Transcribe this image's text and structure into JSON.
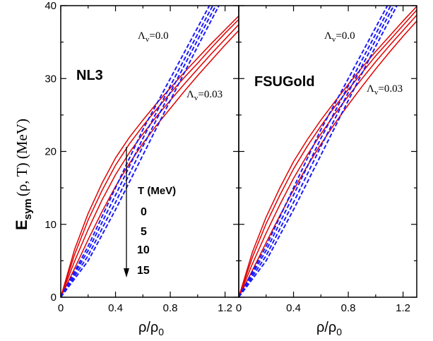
{
  "chart_data": {
    "type": "line",
    "ylabel_main": "E",
    "ylabel_sub": "sym",
    "ylabel_rest": "(ρ, T)  (MeV)",
    "xlabel_main": "ρ/ρ",
    "xlabel_sub": "0",
    "xlim": [
      0,
      1.3
    ],
    "ylim": [
      0,
      40
    ],
    "xticks": [
      0,
      0.4,
      0.8,
      1.2
    ],
    "xtick_labels": [
      "0",
      "0.4",
      "0.8",
      "1.2"
    ],
    "yticks": [
      0,
      10,
      20,
      30,
      40
    ],
    "ytick_labels": [
      "0",
      "10",
      "20",
      "30",
      "40"
    ],
    "grid": false,
    "colors": {
      "red": "#e00000",
      "blue": "#1a1aff"
    },
    "temperature_header": "T (MeV)",
    "temperatures": [
      "0",
      "5",
      "10",
      "15"
    ],
    "panels": [
      {
        "label": "NL3",
        "lambda_high": {
          "letter": "Λ",
          "sub": "v",
          "value": "=0.0"
        },
        "lambda_low": {
          "letter": "Λ",
          "sub": "v",
          "value": "=0.03"
        },
        "series": [
          {
            "style": "red-solid",
            "x": [
              0,
              0.1,
              0.2,
              0.3,
              0.4,
              0.5,
              0.6,
              0.7,
              0.8,
              0.9,
              1.0,
              1.1,
              1.2,
              1.3
            ],
            "y": [
              0,
              6.5,
              11.5,
              15.6,
              19.1,
              21.9,
              24.3,
              26.6,
              28.7,
              30.8,
              32.8,
              34.8,
              36.7,
              38.6
            ]
          },
          {
            "style": "red-solid",
            "x": [
              0,
              0.1,
              0.2,
              0.3,
              0.4,
              0.5,
              0.6,
              0.7,
              0.8,
              0.9,
              1.0,
              1.1,
              1.2,
              1.3
            ],
            "y": [
              0,
              5.8,
              10.6,
              14.6,
              18.1,
              21.0,
              23.5,
              25.8,
              28.0,
              30.1,
              32.1,
              34.2,
              36.2,
              38.1
            ]
          },
          {
            "style": "red-solid",
            "x": [
              0,
              0.1,
              0.2,
              0.3,
              0.4,
              0.5,
              0.6,
              0.7,
              0.8,
              0.9,
              1.0,
              1.1,
              1.2,
              1.3
            ],
            "y": [
              0,
              4.9,
              9.3,
              13.3,
              16.8,
              19.8,
              22.4,
              24.8,
              27.0,
              29.2,
              31.3,
              33.4,
              35.4,
              37.4
            ]
          },
          {
            "style": "red-solid",
            "x": [
              0,
              0.1,
              0.2,
              0.3,
              0.4,
              0.5,
              0.6,
              0.7,
              0.8,
              0.9,
              1.0,
              1.1,
              1.2,
              1.3
            ],
            "y": [
              0,
              3.9,
              7.9,
              11.7,
              15.2,
              18.3,
              21.1,
              23.6,
              25.9,
              28.2,
              30.4,
              32.5,
              34.6,
              36.6
            ]
          },
          {
            "style": "blue-dashed",
            "x": [
              0,
              0.2,
              0.4,
              0.6,
              0.8,
              1.0,
              1.2
            ],
            "y": [
              0,
              7.0,
              15.0,
              23.0,
              30.0,
              37.0,
              44.0
            ]
          },
          {
            "style": "blue-dashed",
            "x": [
              0,
              0.2,
              0.4,
              0.6,
              0.8,
              1.0,
              1.2
            ],
            "y": [
              0,
              6.4,
              14.0,
              21.8,
              29.0,
              36.1,
              43.2
            ]
          },
          {
            "style": "blue-dashed",
            "x": [
              0,
              0.2,
              0.4,
              0.6,
              0.8,
              1.0,
              1.2
            ],
            "y": [
              0,
              5.7,
              13.0,
              20.7,
              28.1,
              35.3,
              42.4
            ]
          },
          {
            "style": "blue-dashed",
            "x": [
              0,
              0.2,
              0.4,
              0.6,
              0.8,
              1.0,
              1.2
            ],
            "y": [
              0,
              5.0,
              12.0,
              19.5,
              27.0,
              34.4,
              41.6
            ]
          }
        ]
      },
      {
        "label": "FSUGold",
        "lambda_high": {
          "letter": "Λ",
          "sub": "v",
          "value": "=0.0"
        },
        "lambda_low": {
          "letter": "Λ",
          "sub": "v",
          "value": "=0.03"
        },
        "series": [
          {
            "style": "red-solid",
            "x": [
              0,
              0.1,
              0.2,
              0.3,
              0.4,
              0.5,
              0.6,
              0.7,
              0.8,
              0.9,
              1.0,
              1.1,
              1.2,
              1.3
            ],
            "y": [
              0,
              6.2,
              11.0,
              15.0,
              18.6,
              21.6,
              24.3,
              26.8,
              29.2,
              31.5,
              33.7,
              35.8,
              37.9,
              39.9
            ]
          },
          {
            "style": "red-solid",
            "x": [
              0,
              0.1,
              0.2,
              0.3,
              0.4,
              0.5,
              0.6,
              0.7,
              0.8,
              0.9,
              1.0,
              1.1,
              1.2,
              1.3
            ],
            "y": [
              0,
              5.5,
              10.1,
              14.0,
              17.6,
              20.7,
              23.5,
              26.1,
              28.5,
              30.8,
              33.1,
              35.2,
              37.3,
              39.4
            ]
          },
          {
            "style": "red-solid",
            "x": [
              0,
              0.1,
              0.2,
              0.3,
              0.4,
              0.5,
              0.6,
              0.7,
              0.8,
              0.9,
              1.0,
              1.1,
              1.2,
              1.3
            ],
            "y": [
              0,
              4.6,
              8.8,
              12.7,
              16.3,
              19.5,
              22.4,
              25.1,
              27.6,
              30.0,
              32.3,
              34.5,
              36.6,
              38.7
            ]
          },
          {
            "style": "red-solid",
            "x": [
              0,
              0.1,
              0.2,
              0.3,
              0.4,
              0.5,
              0.6,
              0.7,
              0.8,
              0.9,
              1.0,
              1.1,
              1.2,
              1.3
            ],
            "y": [
              0,
              3.7,
              7.5,
              11.2,
              14.7,
              18.0,
              21.0,
              23.8,
              26.4,
              28.9,
              31.3,
              33.6,
              35.8,
              37.9
            ]
          },
          {
            "style": "blue-dashed",
            "x": [
              0,
              0.2,
              0.4,
              0.6,
              0.8,
              1.0,
              1.2
            ],
            "y": [
              0,
              7.0,
              15.0,
              23.0,
              30.0,
              37.0,
              44.0
            ]
          },
          {
            "style": "blue-dashed",
            "x": [
              0,
              0.2,
              0.4,
              0.6,
              0.8,
              1.0,
              1.2
            ],
            "y": [
              0,
              6.4,
              14.0,
              21.8,
              29.0,
              36.1,
              43.2
            ]
          },
          {
            "style": "blue-dashed",
            "x": [
              0,
              0.2,
              0.4,
              0.6,
              0.8,
              1.0,
              1.2
            ],
            "y": [
              0,
              5.7,
              13.0,
              20.7,
              28.1,
              35.3,
              42.4
            ]
          },
          {
            "style": "blue-dashed",
            "x": [
              0,
              0.2,
              0.4,
              0.6,
              0.8,
              1.0,
              1.2
            ],
            "y": [
              0,
              5.0,
              12.0,
              19.5,
              27.0,
              34.4,
              41.6
            ]
          }
        ]
      }
    ]
  }
}
